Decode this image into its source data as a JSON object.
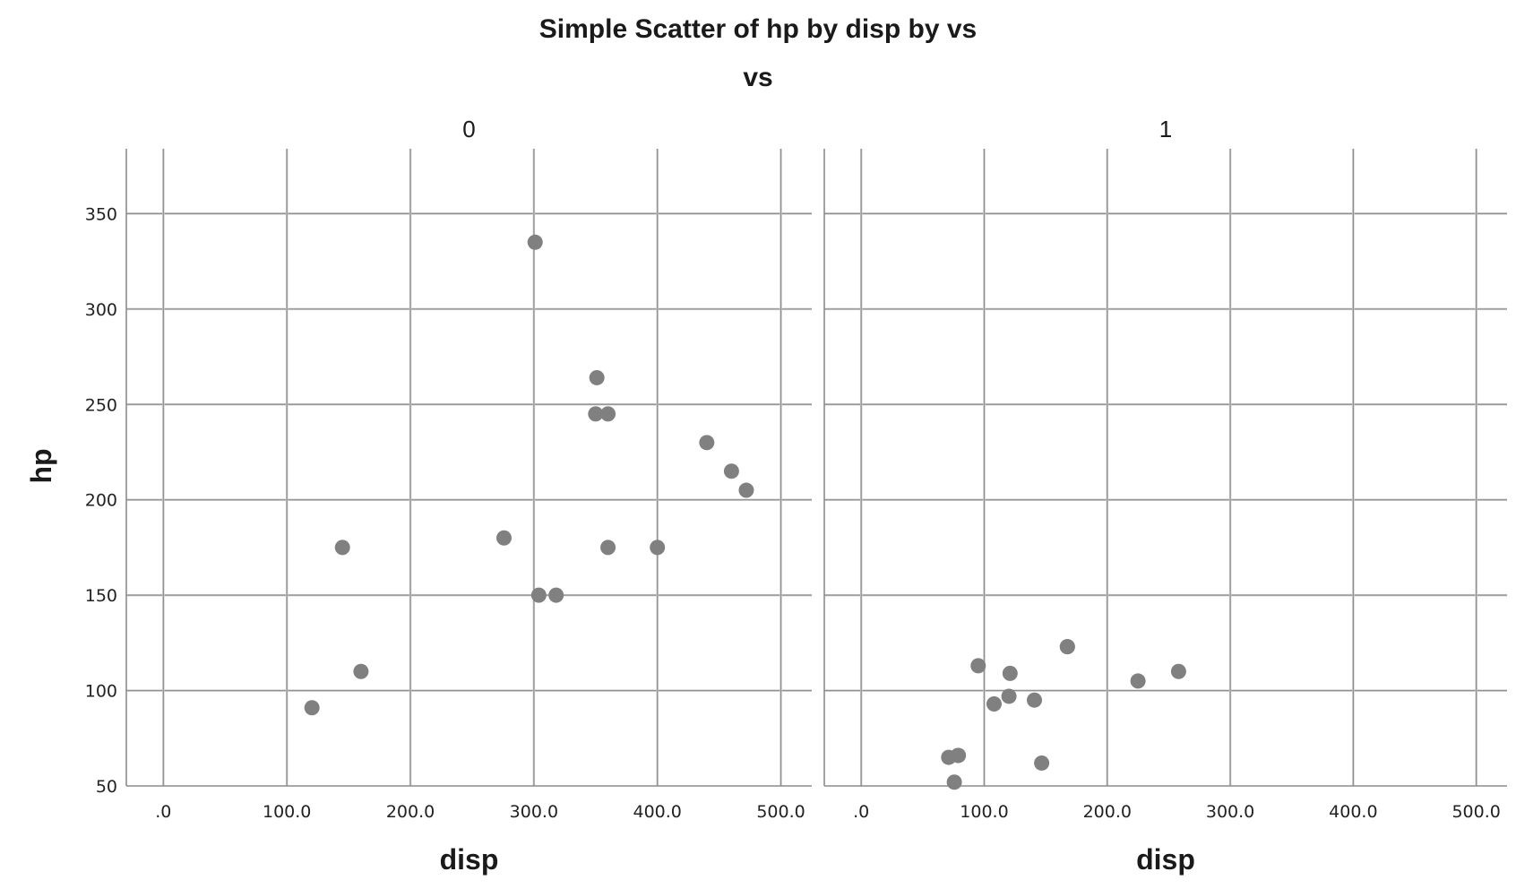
{
  "chart_data": {
    "type": "scatter",
    "title": "Simple Scatter of hp by disp by vs",
    "panel_variable": "vs",
    "xlabel": "disp",
    "ylabel": "hp",
    "xlim": [
      -30,
      525
    ],
    "ylim": [
      50,
      384
    ],
    "x_ticks": [
      0,
      100,
      200,
      300,
      400,
      500
    ],
    "x_tick_labels": [
      ".0",
      "100.0",
      "200.0",
      "300.0",
      "400.0",
      "500.0"
    ],
    "y_ticks": [
      50,
      100,
      150,
      200,
      250,
      300,
      350
    ],
    "y_tick_labels": [
      "50",
      "100",
      "150",
      "200",
      "250",
      "300",
      "350"
    ],
    "grid": true,
    "marker_color": "#808080",
    "panels": [
      {
        "label": "0",
        "points": [
          {
            "x": 120.3,
            "y": 91
          },
          {
            "x": 145,
            "y": 175
          },
          {
            "x": 160,
            "y": 110
          },
          {
            "x": 275.8,
            "y": 180
          },
          {
            "x": 301,
            "y": 335
          },
          {
            "x": 304,
            "y": 150
          },
          {
            "x": 318,
            "y": 150
          },
          {
            "x": 350,
            "y": 245
          },
          {
            "x": 351,
            "y": 264
          },
          {
            "x": 360,
            "y": 175
          },
          {
            "x": 360,
            "y": 245
          },
          {
            "x": 400,
            "y": 175
          },
          {
            "x": 440,
            "y": 230
          },
          {
            "x": 460,
            "y": 215
          },
          {
            "x": 472,
            "y": 205
          }
        ]
      },
      {
        "label": "1",
        "points": [
          {
            "x": 71.1,
            "y": 65
          },
          {
            "x": 75.7,
            "y": 52
          },
          {
            "x": 78.7,
            "y": 66
          },
          {
            "x": 79,
            "y": 66
          },
          {
            "x": 95.1,
            "y": 113
          },
          {
            "x": 108,
            "y": 93
          },
          {
            "x": 120.1,
            "y": 97
          },
          {
            "x": 121,
            "y": 109
          },
          {
            "x": 140.8,
            "y": 95
          },
          {
            "x": 146.7,
            "y": 62
          },
          {
            "x": 167.6,
            "y": 123
          },
          {
            "x": 167.6,
            "y": 123
          },
          {
            "x": 225,
            "y": 105
          },
          {
            "x": 258,
            "y": 110
          }
        ]
      }
    ]
  }
}
